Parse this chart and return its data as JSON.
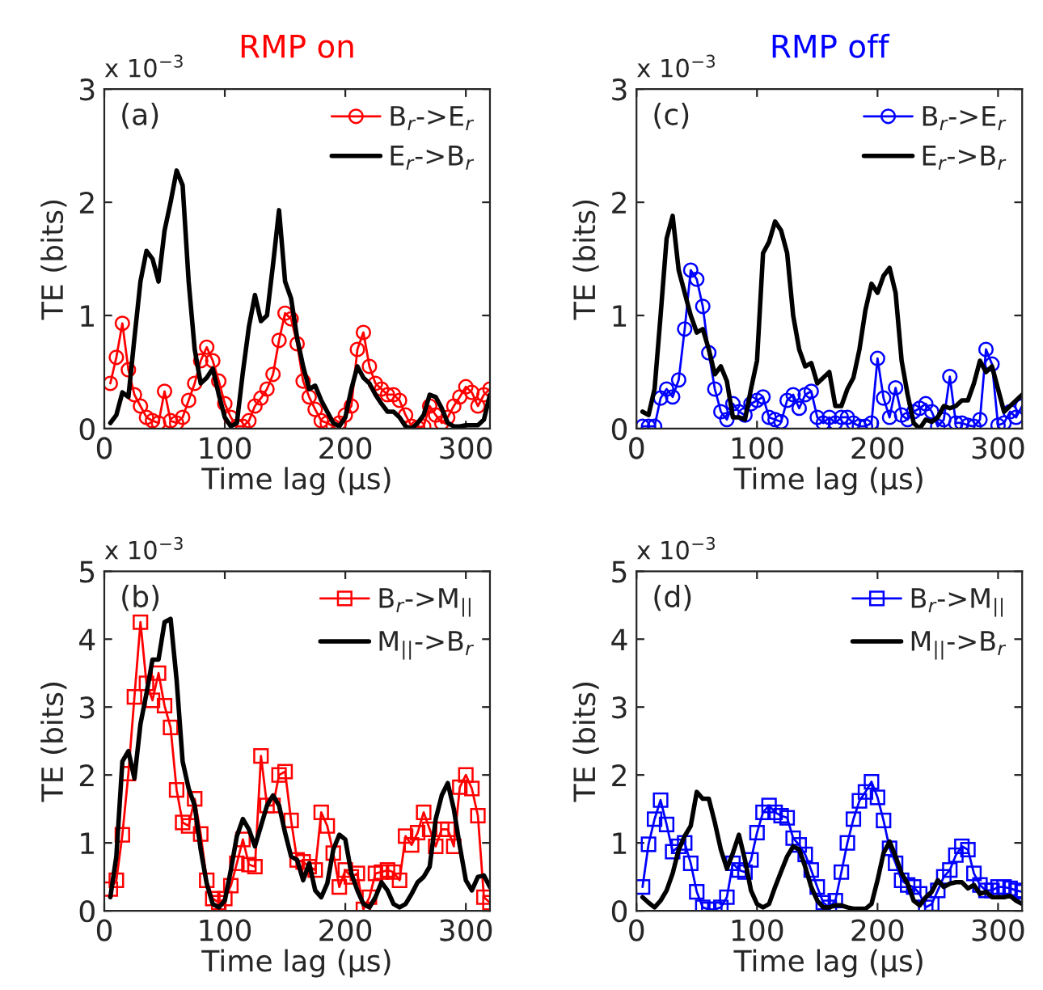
{
  "chart_data": [
    {
      "type": "line",
      "title": "RMP on",
      "xlabel": "Time lag (µs)",
      "ylabel": "TE (bits)",
      "annotations": [
        "(a)",
        "x 10$^{−3}$"
      ],
      "x": [
        5,
        10,
        15,
        20,
        25,
        30,
        35,
        40,
        45,
        50,
        55,
        60,
        65,
        70,
        75,
        80,
        85,
        90,
        95,
        100,
        105,
        110,
        115,
        120,
        125,
        130,
        135,
        140,
        145,
        150,
        155,
        160,
        165,
        170,
        175,
        180,
        185,
        190,
        195,
        200,
        205,
        210,
        215,
        220,
        225,
        230,
        235,
        240,
        245,
        250,
        255,
        260,
        265,
        270,
        275,
        280,
        285,
        290,
        295,
        300,
        305,
        310,
        315,
        320
      ],
      "xlim": [
        0,
        320
      ],
      "xticks": [
        0,
        100,
        200,
        300
      ],
      "ylim": [
        0,
        3
      ],
      "yticks": [
        0,
        1,
        2,
        3
      ],
      "grid": false,
      "legend": "top right",
      "series": [
        {
          "name": "B$_{r}$->E$_{r}$",
          "color": "#ff0000",
          "marker": "circle",
          "values": [
            0.4,
            0.63,
            0.93,
            0.52,
            0.3,
            0.2,
            0.1,
            0.07,
            0.05,
            0.33,
            0.07,
            0.05,
            0.1,
            0.25,
            0.4,
            0.6,
            0.72,
            0.6,
            0.42,
            0.22,
            0.1,
            0.02,
            0.02,
            0.07,
            0.2,
            0.27,
            0.35,
            0.48,
            0.78,
            1.02,
            0.97,
            0.75,
            0.42,
            0.28,
            0.17,
            0.07,
            0.05,
            0.02,
            0.05,
            0.12,
            0.2,
            0.7,
            0.85,
            0.55,
            0.4,
            0.35,
            0.3,
            0.3,
            0.25,
            0.12,
            0.02,
            0.01,
            0.02,
            0.2,
            0.12,
            0.05,
            0.1,
            0.2,
            0.28,
            0.37,
            0.32,
            0.2,
            0.3,
            0.35
          ]
        },
        {
          "name": "E$_{r}$->B$_{r}$",
          "color": "#000000",
          "marker": "none",
          "values": [
            0.05,
            0.12,
            0.32,
            0.28,
            0.8,
            1.3,
            1.57,
            1.5,
            1.3,
            1.75,
            2.0,
            2.28,
            2.15,
            1.3,
            0.7,
            0.4,
            0.45,
            0.53,
            0.3,
            0.1,
            0.02,
            0.05,
            0.5,
            0.9,
            1.18,
            0.95,
            1.0,
            1.45,
            1.93,
            1.3,
            1.15,
            0.8,
            0.55,
            0.35,
            0.38,
            0.25,
            0.15,
            0.05,
            0.02,
            0.1,
            0.35,
            0.55,
            0.45,
            0.4,
            0.3,
            0.22,
            0.15,
            0.15,
            0.1,
            0.02,
            0.0,
            0.05,
            0.12,
            0.3,
            0.28,
            0.18,
            0.05,
            0.02,
            0.02,
            0.03,
            0.03,
            0.03,
            0.08,
            0.3
          ]
        }
      ]
    },
    {
      "type": "line",
      "title": "RMP off",
      "xlabel": "Time lag (µs)",
      "ylabel": "TE (bits)",
      "annotations": [
        "(c)",
        "x 10$^{−3}$"
      ],
      "x": [
        5,
        10,
        15,
        20,
        25,
        30,
        35,
        40,
        45,
        50,
        55,
        60,
        65,
        70,
        75,
        80,
        85,
        90,
        95,
        100,
        105,
        110,
        115,
        120,
        125,
        130,
        135,
        140,
        145,
        150,
        155,
        160,
        165,
        170,
        175,
        180,
        185,
        190,
        195,
        200,
        205,
        210,
        215,
        220,
        225,
        230,
        235,
        240,
        245,
        250,
        255,
        260,
        265,
        270,
        275,
        280,
        285,
        290,
        295,
        300,
        305,
        310,
        315,
        320
      ],
      "xlim": [
        0,
        320
      ],
      "xticks": [
        0,
        100,
        200,
        300
      ],
      "ylim": [
        0,
        3
      ],
      "yticks": [
        0,
        1,
        2,
        3
      ],
      "grid": false,
      "legend": "top right",
      "series": [
        {
          "name": "B$_{r}$->E$_{r}$",
          "color": "#0000ff",
          "marker": "circle",
          "values": [
            0.02,
            0.02,
            0.02,
            0.27,
            0.35,
            0.28,
            0.43,
            0.88,
            1.4,
            1.32,
            1.08,
            0.67,
            0.35,
            0.15,
            0.08,
            0.22,
            0.15,
            0.12,
            0.22,
            0.25,
            0.28,
            0.1,
            0.08,
            0.06,
            0.25,
            0.3,
            0.18,
            0.3,
            0.33,
            0.1,
            0.05,
            0.1,
            0.05,
            0.1,
            0.1,
            0.05,
            0.02,
            0.02,
            0.05,
            0.62,
            0.27,
            0.1,
            0.36,
            0.12,
            0.08,
            0.15,
            0.18,
            0.22,
            0.15,
            0.02,
            0.08,
            0.46,
            0.05,
            0.05,
            0.03,
            0.02,
            0.08,
            0.7,
            0.57,
            0.03,
            0.05,
            0.15,
            0.1,
            0.2
          ]
        },
        {
          "name": "E$_{r}$->B$_{r}$",
          "color": "#000000",
          "marker": "none",
          "values": [
            0.15,
            0.12,
            0.35,
            1.0,
            1.68,
            1.88,
            1.4,
            1.2,
            1.0,
            0.85,
            0.88,
            0.7,
            0.48,
            0.55,
            0.42,
            0.1,
            0.1,
            0.08,
            0.35,
            0.6,
            1.55,
            1.65,
            1.83,
            1.75,
            1.55,
            1.0,
            0.7,
            0.55,
            0.58,
            0.4,
            0.45,
            0.5,
            0.2,
            0.2,
            0.35,
            0.45,
            0.7,
            1.05,
            1.28,
            1.2,
            1.35,
            1.42,
            1.2,
            0.6,
            0.3,
            0.05,
            0.0,
            0.08,
            0.06,
            0.1,
            0.2,
            0.18,
            0.2,
            0.25,
            0.25,
            0.4,
            0.6,
            0.5,
            0.55,
            0.35,
            0.15,
            0.2,
            0.25,
            0.3
          ]
        }
      ]
    },
    {
      "type": "line",
      "xlabel": "Time lag (µs)",
      "ylabel": "TE (bits)",
      "annotations": [
        "(b)",
        "x 10$^{−3}$"
      ],
      "x": [
        5,
        10,
        15,
        20,
        25,
        30,
        35,
        40,
        45,
        50,
        55,
        60,
        65,
        70,
        75,
        80,
        85,
        90,
        95,
        100,
        105,
        110,
        115,
        120,
        125,
        130,
        135,
        140,
        145,
        150,
        155,
        160,
        165,
        170,
        175,
        180,
        185,
        190,
        195,
        200,
        205,
        210,
        215,
        220,
        225,
        230,
        235,
        240,
        245,
        250,
        255,
        260,
        265,
        270,
        275,
        280,
        285,
        290,
        295,
        300,
        305,
        310,
        315,
        320
      ],
      "xlim": [
        0,
        320
      ],
      "xticks": [
        0,
        100,
        200,
        300
      ],
      "ylim": [
        0,
        5
      ],
      "yticks": [
        0,
        1,
        2,
        3,
        4,
        5
      ],
      "grid": false,
      "legend": "top right",
      "series": [
        {
          "name": "B$_{r}$->M$_{||}$",
          "color": "#ff0000",
          "marker": "square",
          "values": [
            0.32,
            0.45,
            1.12,
            2.02,
            3.15,
            4.25,
            3.35,
            3.1,
            3.5,
            3.02,
            2.7,
            1.78,
            1.3,
            1.25,
            1.65,
            1.13,
            0.45,
            0.18,
            0.12,
            0.18,
            0.37,
            0.7,
            1.05,
            0.68,
            0.65,
            2.28,
            1.55,
            1.55,
            2.0,
            2.05,
            1.33,
            0.75,
            0.72,
            0.65,
            0.6,
            1.45,
            1.25,
            0.85,
            0.35,
            0.6,
            0.5,
            0.55,
            0.02,
            0.2,
            0.55,
            0.57,
            0.6,
            0.57,
            0.45,
            1.1,
            0.97,
            1.15,
            1.45,
            1.2,
            0.95,
            1.2,
            1.2,
            0.95,
            1.82,
            2.0,
            1.8,
            1.4,
            0.2,
            0.12
          ]
        },
        {
          "name": "M$_{||}$->B$_{r}$",
          "color": "#000000",
          "marker": "none",
          "values": [
            0.2,
            0.8,
            2.2,
            2.35,
            1.95,
            2.75,
            3.2,
            3.7,
            3.7,
            4.25,
            4.3,
            3.4,
            2.2,
            1.8,
            1.55,
            0.9,
            0.4,
            0.1,
            0.05,
            0.15,
            0.6,
            1.1,
            1.35,
            1.2,
            0.95,
            1.25,
            1.55,
            1.7,
            1.55,
            1.15,
            0.8,
            0.75,
            0.45,
            0.7,
            0.3,
            0.2,
            0.4,
            0.9,
            1.12,
            1.05,
            0.55,
            0.3,
            0.1,
            0.05,
            0.2,
            0.42,
            0.3,
            0.1,
            0.05,
            0.1,
            0.25,
            0.42,
            0.5,
            0.65,
            1.35,
            1.7,
            1.88,
            1.5,
            0.95,
            0.45,
            0.3,
            0.5,
            0.52,
            0.35
          ]
        }
      ]
    },
    {
      "type": "line",
      "xlabel": "Time lag (µs)",
      "ylabel": "TE (bits)",
      "annotations": [
        "(d)",
        "x 10$^{−3}$"
      ],
      "x": [
        5,
        10,
        15,
        20,
        25,
        30,
        35,
        40,
        45,
        50,
        55,
        60,
        65,
        70,
        75,
        80,
        85,
        90,
        95,
        100,
        105,
        110,
        115,
        120,
        125,
        130,
        135,
        140,
        145,
        150,
        155,
        160,
        165,
        170,
        175,
        180,
        185,
        190,
        195,
        200,
        205,
        210,
        215,
        220,
        225,
        230,
        235,
        240,
        245,
        250,
        255,
        260,
        265,
        270,
        275,
        280,
        285,
        290,
        295,
        300,
        305,
        310,
        315,
        320
      ],
      "xlim": [
        0,
        320
      ],
      "xticks": [
        0,
        100,
        200,
        300
      ],
      "ylim": [
        0,
        5
      ],
      "yticks": [
        0,
        1,
        2,
        3,
        4,
        5
      ],
      "grid": false,
      "legend": "top right",
      "series": [
        {
          "name": "B$_{r}$->M$_{||}$",
          "color": "#0000ff",
          "marker": "square",
          "values": [
            0.35,
            0.98,
            1.35,
            1.63,
            1.27,
            0.87,
            0.95,
            1.0,
            0.7,
            0.28,
            0.05,
            0.02,
            0.02,
            0.05,
            0.2,
            0.7,
            0.6,
            0.57,
            0.75,
            1.15,
            1.45,
            1.55,
            1.45,
            1.4,
            1.37,
            1.07,
            0.97,
            0.83,
            0.6,
            0.35,
            0.12,
            0.05,
            0.15,
            0.57,
            1.0,
            1.35,
            1.62,
            1.75,
            1.9,
            1.67,
            1.33,
            0.92,
            0.7,
            0.45,
            0.38,
            0.35,
            0.25,
            0.05,
            0.1,
            0.3,
            0.5,
            0.6,
            0.82,
            0.95,
            0.9,
            0.55,
            0.38,
            0.3,
            0.3,
            0.35,
            0.35,
            0.33,
            0.3,
            0.28
          ]
        },
        {
          "name": "M$_{||}$->B$_{r}$",
          "color": "#000000",
          "marker": "none",
          "values": [
            0.2,
            0.12,
            0.05,
            0.15,
            0.3,
            0.55,
            0.9,
            1.1,
            1.25,
            1.75,
            1.65,
            1.65,
            1.3,
            0.9,
            0.62,
            0.85,
            1.12,
            0.75,
            0.3,
            0.1,
            0.05,
            0.1,
            0.35,
            0.58,
            0.8,
            0.95,
            0.9,
            0.65,
            0.35,
            0.15,
            0.05,
            0.05,
            0.08,
            0.08,
            0.05,
            0.03,
            0.03,
            0.03,
            0.1,
            0.45,
            0.85,
            1.02,
            0.8,
            0.55,
            0.4,
            0.15,
            0.08,
            0.2,
            0.28,
            0.45,
            0.35,
            0.4,
            0.42,
            0.42,
            0.33,
            0.38,
            0.25,
            0.28,
            0.2,
            0.2,
            0.2,
            0.22,
            0.15,
            0.1
          ]
        }
      ]
    }
  ]
}
